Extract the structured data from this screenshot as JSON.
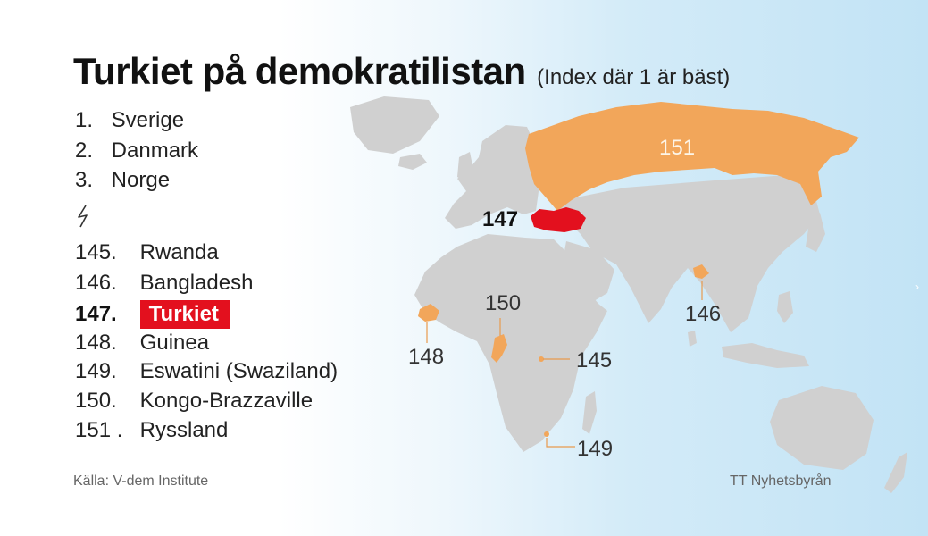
{
  "title": "Turkiet på demokratilistan",
  "subtitle": "(Index där 1 är bäst)",
  "top_ranks": [
    {
      "rank": "1.",
      "country": "Sverige"
    },
    {
      "rank": "2.",
      "country": "Danmark"
    },
    {
      "rank": "3.",
      "country": "Norge"
    }
  ],
  "bottom_ranks": [
    {
      "rank": "145.",
      "country": "Rwanda"
    },
    {
      "rank": "146.",
      "country": "Bangladesh"
    },
    {
      "rank": "147.",
      "country": "Turkiet"
    },
    {
      "rank": "148.",
      "country": "Guinea"
    },
    {
      "rank": "149.",
      "country": "Eswatini (Swaziland)"
    },
    {
      "rank": "150.",
      "country": "Kongo-Brazzaville"
    },
    {
      "rank": "151 .",
      "country": "Ryssland"
    }
  ],
  "source": "Källa: V-dem Institute",
  "credit": "TT Nyhetsbyrån",
  "map_labels": {
    "russia": "151",
    "turkey": "147",
    "bangladesh": "146",
    "congo": "150",
    "guinea": "148",
    "rwanda": "145",
    "eswatini": "149"
  },
  "colors": {
    "highlight": "#e3101e",
    "ranked_country": "#f2a65a",
    "land": "#d0d0d0",
    "ocean": "#c2e3f5"
  }
}
